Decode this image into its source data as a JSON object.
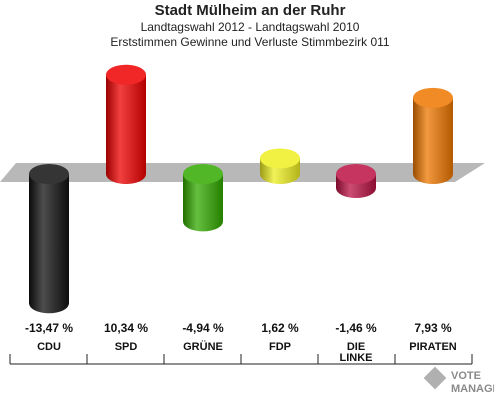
{
  "title": "Stadt Mülheim an der Ruhr",
  "subtitle1": "Landtagswahl 2012 - Landtagswahl 2010",
  "subtitle2": "Erststimmen Gewinne und Verluste Stimmbezirk 011",
  "brand": {
    "line1": "VOTE",
    "line2": "MANAGER"
  },
  "chart_data": {
    "type": "bar",
    "categories": [
      "CDU",
      "SPD",
      "GRÜNE",
      "FDP",
      "DIE LINKE",
      "PIRATEN"
    ],
    "values": [
      -13.47,
      10.34,
      -4.94,
      1.62,
      -1.46,
      7.93
    ],
    "value_labels": [
      "-13,47 %",
      "10,34 %",
      "-4,94 %",
      "1,62 %",
      "-1,46 %",
      "7,93 %"
    ],
    "colors": [
      "#111111",
      "#ee0000",
      "#33aa00",
      "#eeee22",
      "#bb1144",
      "#ee7700"
    ],
    "unit": "%",
    "grid": false,
    "legend": "none"
  }
}
